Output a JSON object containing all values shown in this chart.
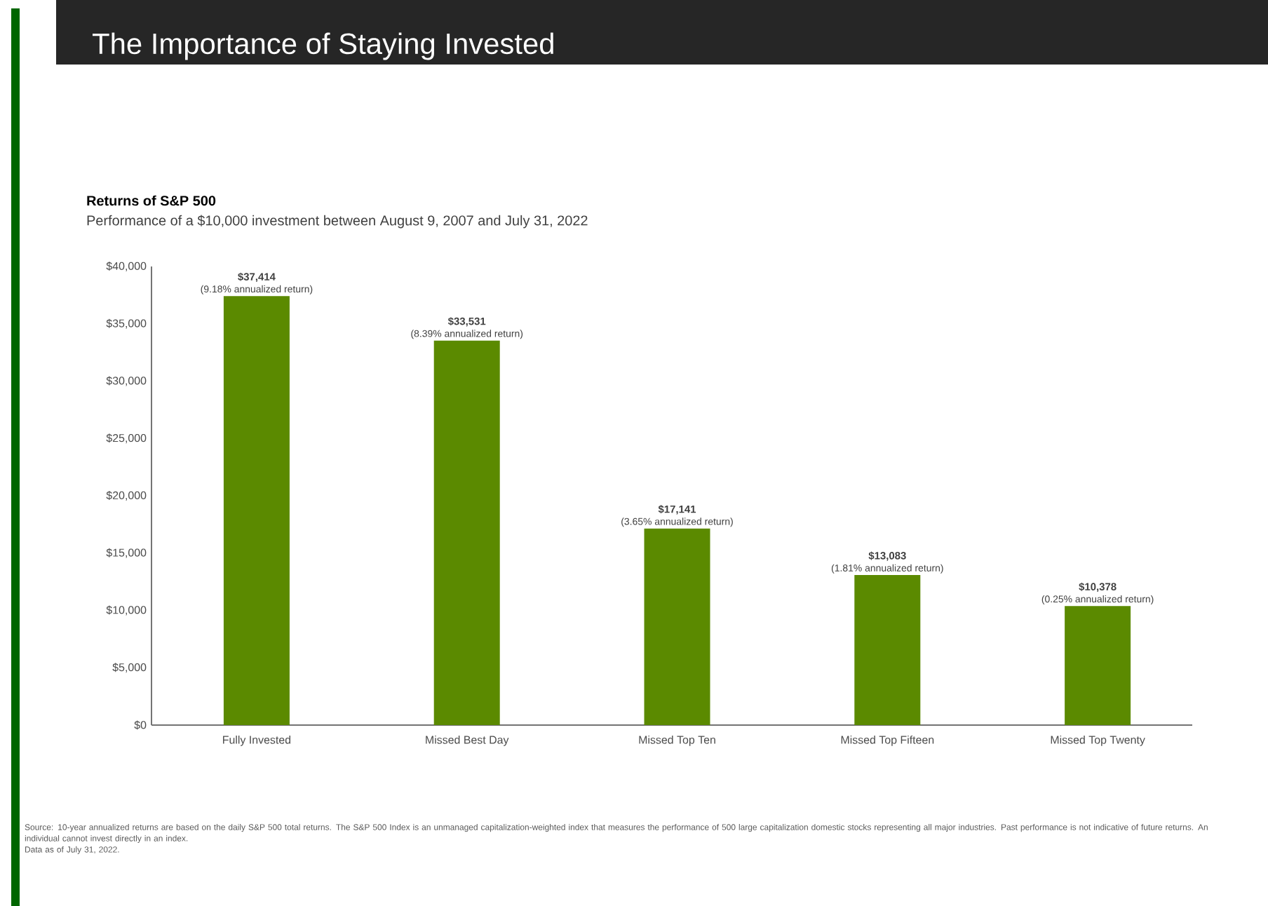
{
  "chart_data": {
    "type": "bar",
    "title": "The Importance of Staying Invested",
    "subtitle": "Returns of S&P 500",
    "ylabel": null,
    "categories": [
      "Fully Invested",
      "Missed Best Day",
      "Missed Top Ten",
      "Missed Top Fifteen",
      "Missed Top Twenty"
    ],
    "values": [
      37414,
      33531,
      17141,
      13083,
      10378
    ],
    "value_labels": [
      "$37,414",
      "$33,531",
      "$17,141",
      "$13,083",
      "$10,378"
    ],
    "color": "#5b8a00",
    "ylim": [
      0,
      40000
    ],
    "yticks": [
      {
        "value": 0,
        "label": "$0"
      },
      {
        "value": 5000,
        "label": "$5,000"
      },
      {
        "value": 10000,
        "label": "$10,000"
      },
      {
        "value": 15000,
        "label": "$15,000"
      },
      {
        "value": 20000,
        "label": "$20,000"
      },
      {
        "value": 25000,
        "label": "$25,000"
      },
      {
        "value": 30000,
        "label": "$30,000"
      },
      {
        "value": 35000,
        "label": "$35,000"
      },
      {
        "value": 40000,
        "label": "$40,000"
      }
    ],
    "annotations": [
      {
        "text": "(9.18% annualized return)",
        "x": "Fully Invested",
        "y": 37414
      },
      {
        "text": "(8.39% annualized return)",
        "x": "Missed Best Day",
        "y": 33531
      },
      {
        "text": "(3.65% annualized return)",
        "x": "Missed Top Ten",
        "y": 17141
      },
      {
        "text": "(1.81% annualized return)",
        "x": "Missed Top Fifteen",
        "y": 13083
      },
      {
        "text": "(0.25% annualized return)",
        "x": "Missed Top Twenty",
        "y": 10378
      },
      "Performance of a $10,000 investment between August 9, 2007 and July 31, 2022",
      "Source: 10-year annualized returns are based on the daily S&P 500 total returns. The S&P 500 Index is an unmanaged capitalization-weighted index that measures the performance of 500 large capitalization domestic stocks representing all major industries. Past performance is not indicative of future returns. An individual cannot invest directly in an index.",
      "Data as of July 31, 2022."
    ],
    "grid": false
  }
}
